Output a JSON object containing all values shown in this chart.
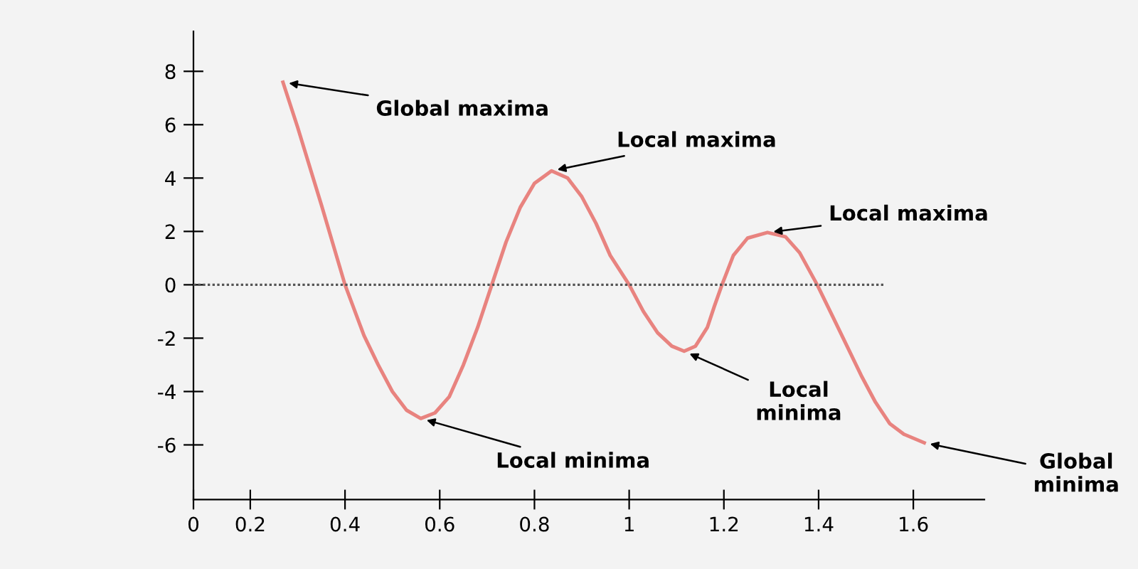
{
  "chart_data": {
    "type": "line",
    "xlim": [
      0.08,
      1.75
    ],
    "ylim": [
      -8.05,
      9.5
    ],
    "xticks": [
      {
        "value": 0.08,
        "label": "0"
      },
      0.2,
      0.4,
      0.6,
      0.8,
      {
        "value": 1.0,
        "label": "1"
      },
      1.2,
      1.4,
      1.6
    ],
    "yticks": [
      {
        "value": -6,
        "label": "-6"
      },
      {
        "value": -4,
        "label": "-4"
      },
      {
        "value": -2,
        "label": "-2"
      },
      0,
      2,
      4,
      6,
      8
    ],
    "grid": false,
    "legend": false,
    "marker": "none",
    "series": [
      {
        "color": "#e8837f",
        "line_style": "solid",
        "x": [
          0.269,
          0.3,
          0.35,
          0.4,
          0.44,
          0.47,
          0.5,
          0.53,
          0.56,
          0.59,
          0.62,
          0.65,
          0.68,
          0.71,
          0.74,
          0.77,
          0.8,
          0.836,
          0.87,
          0.9,
          0.93,
          0.96,
          1.0,
          1.03,
          1.06,
          1.09,
          1.116,
          1.14,
          1.165,
          1.18,
          1.196,
          1.22,
          1.25,
          1.292,
          1.33,
          1.36,
          1.397,
          1.43,
          1.46,
          1.49,
          1.52,
          1.55,
          1.58,
          1.623
        ],
        "values": [
          7.59,
          5.9,
          3.0,
          0,
          -1.9,
          -3.0,
          -4.0,
          -4.7,
          -5.01,
          -4.8,
          -4.2,
          -3.0,
          -1.6,
          0,
          1.6,
          2.9,
          3.8,
          4.27,
          4.0,
          3.3,
          2.3,
          1.1,
          0,
          -1.0,
          -1.8,
          -2.3,
          -2.49,
          -2.3,
          -1.6,
          -0.8,
          0,
          1.1,
          1.75,
          1.96,
          1.8,
          1.2,
          0,
          -1.2,
          -2.3,
          -3.4,
          -4.4,
          -5.2,
          -5.6,
          -5.92
        ]
      },
      {
        "color": "#555555",
        "line_style": "dotted",
        "x": [
          0.08,
          1.54
        ],
        "values": [
          0,
          0
        ]
      }
    ],
    "annotations": [
      {
        "text": "Global maxima",
        "x": 0.269,
        "y": 7.59
      },
      {
        "text": "Local maxima",
        "x": 0.836,
        "y": 4.27
      },
      {
        "text": "Local maxima",
        "x": 1.292,
        "y": 1.96
      },
      {
        "text": "Local minima",
        "x": 0.56,
        "y": -5.01
      },
      {
        "text": "Local\nminima",
        "x": 1.116,
        "y": -2.49
      },
      {
        "text": "Global\nminima",
        "x": 1.623,
        "y": -5.92
      }
    ]
  }
}
